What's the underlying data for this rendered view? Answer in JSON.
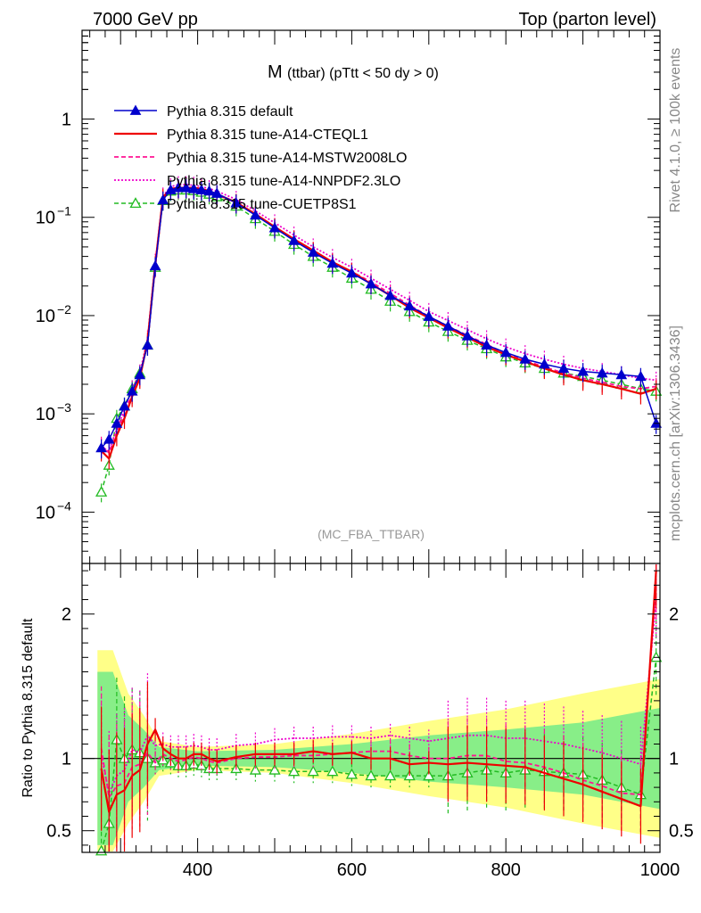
{
  "header": {
    "left": "7000 GeV pp",
    "right": "Top (parton level)",
    "title": "M",
    "subtitle": "(ttbar) (pTtt < 50 dy > 0)",
    "watermark": "(MC_FBA_TTBAR)",
    "side_top": "Rivet 4.1.0, ≥ 100k events",
    "side_bottom": "mcplots.cern.ch [arXiv:1306.3436]"
  },
  "chart_data": {
    "type": "line",
    "title": "M (ttbar) (pTtt < 50 dy > 0)",
    "xlabel": "",
    "ylabel_ratio": "Ratio to Pythia 8.315 default",
    "xlim": [
      250,
      1000
    ],
    "ylim_main": [
      3e-05,
      8
    ],
    "ylim_ratio": [
      0.35,
      2.35
    ],
    "x_ticks": [
      "400",
      "600",
      "800",
      "1000"
    ],
    "x_tick_values": [
      400,
      600,
      800,
      1000
    ],
    "y_ticks_main": [
      {
        "value": 1,
        "mant": "1",
        "exp": ""
      },
      {
        "value": 0.1,
        "mant": "10",
        "exp": "−1"
      },
      {
        "value": 0.01,
        "mant": "10",
        "exp": "−2"
      },
      {
        "value": 0.001,
        "mant": "10",
        "exp": "−3"
      },
      {
        "value": 0.0001,
        "mant": "10",
        "exp": "−4"
      }
    ],
    "y_ticks_ratio": [
      {
        "value": 0.5,
        "label": "0.5"
      },
      {
        "value": 1,
        "label": "1"
      },
      {
        "value": 2,
        "label": "2"
      }
    ],
    "band_x": [
      270,
      290,
      310,
      330,
      350,
      400,
      500,
      600,
      700,
      800,
      900,
      1000
    ],
    "band_green": [
      0.6,
      0.6,
      0.3,
      0.2,
      0.08,
      0.05,
      0.06,
      0.1,
      0.16,
      0.2,
      0.25,
      0.35
    ],
    "band_yellow": [
      0.75,
      0.75,
      0.45,
      0.3,
      0.12,
      0.08,
      0.1,
      0.17,
      0.26,
      0.34,
      0.45,
      0.55
    ],
    "x": [
      275,
      285,
      295,
      305,
      315,
      325,
      335,
      345,
      355,
      365,
      375,
      385,
      395,
      405,
      415,
      425,
      450,
      475,
      500,
      525,
      550,
      575,
      600,
      625,
      650,
      675,
      700,
      725,
      750,
      775,
      800,
      825,
      850,
      875,
      900,
      925,
      950,
      975,
      995
    ],
    "series": [
      {
        "name": "Pythia 8.315 default",
        "color": "#0000cc",
        "dash": "",
        "width": 1.5,
        "marker": "triangle-filled",
        "values": [
          0.00045,
          0.00055,
          0.0008,
          0.0012,
          0.0017,
          0.0025,
          0.005,
          0.032,
          0.15,
          0.19,
          0.2,
          0.2,
          0.195,
          0.19,
          0.185,
          0.175,
          0.14,
          0.105,
          0.078,
          0.058,
          0.044,
          0.034,
          0.027,
          0.021,
          0.016,
          0.0125,
          0.0098,
          0.0078,
          0.0062,
          0.005,
          0.0042,
          0.0036,
          0.0032,
          0.0029,
          0.0027,
          0.0026,
          0.0025,
          0.0024,
          0.0008
        ]
      },
      {
        "name": "Pythia 8.315 tune-A14-CTEQL1",
        "color": "#ee0000",
        "dash": "",
        "width": 2.2,
        "marker": "",
        "values": [
          0.00042,
          0.00035,
          0.0006,
          0.0009,
          0.0015,
          0.0023,
          0.0055,
          0.033,
          0.16,
          0.195,
          0.2,
          0.2,
          0.2,
          0.195,
          0.185,
          0.172,
          0.142,
          0.108,
          0.08,
          0.06,
          0.046,
          0.035,
          0.028,
          0.021,
          0.016,
          0.012,
          0.0095,
          0.0075,
          0.006,
          0.0048,
          0.004,
          0.0034,
          0.0029,
          0.0025,
          0.0022,
          0.002,
          0.0018,
          0.0016,
          0.0018
        ]
      },
      {
        "name": "Pythia 8.315 tune-A14-MSTW2008LO",
        "color": "#ff1493",
        "dash": "5,3",
        "width": 1.8,
        "marker": "",
        "values": [
          0.00048,
          0.0004,
          0.00065,
          0.001,
          0.0016,
          0.0024,
          0.0052,
          0.031,
          0.155,
          0.19,
          0.195,
          0.198,
          0.197,
          0.19,
          0.182,
          0.17,
          0.14,
          0.106,
          0.079,
          0.059,
          0.045,
          0.035,
          0.028,
          0.022,
          0.0168,
          0.0128,
          0.0098,
          0.0078,
          0.0063,
          0.0051,
          0.0041,
          0.0035,
          0.003,
          0.0026,
          0.0023,
          0.0021,
          0.0019,
          0.0018,
          0.0019
        ]
      },
      {
        "name": "Pythia 8.315 tune-A14-NNPDF2.3LO",
        "color": "#ee00cc",
        "dash": "2,2",
        "width": 1.8,
        "marker": "",
        "values": [
          0.00046,
          0.00042,
          0.0007,
          0.0011,
          0.0018,
          0.0026,
          0.0058,
          0.035,
          0.165,
          0.205,
          0.215,
          0.215,
          0.212,
          0.205,
          0.196,
          0.185,
          0.152,
          0.116,
          0.088,
          0.066,
          0.05,
          0.039,
          0.031,
          0.024,
          0.0185,
          0.0143,
          0.011,
          0.0089,
          0.0072,
          0.0058,
          0.0048,
          0.0041,
          0.0036,
          0.0032,
          0.0029,
          0.0027,
          0.0025,
          0.0023,
          0.0022
        ]
      },
      {
        "name": "Pythia 8.315 tune-CUETP8S1",
        "color": "#22bb22",
        "dash": "5,3",
        "width": 1.5,
        "marker": "triangle-open",
        "values": [
          0.00016,
          0.0003,
          0.0009,
          0.0012,
          0.0018,
          0.0026,
          0.005,
          0.031,
          0.148,
          0.185,
          0.19,
          0.19,
          0.187,
          0.18,
          0.172,
          0.162,
          0.13,
          0.097,
          0.072,
          0.053,
          0.04,
          0.031,
          0.024,
          0.0185,
          0.014,
          0.011,
          0.0086,
          0.0069,
          0.0056,
          0.0046,
          0.0038,
          0.0033,
          0.0029,
          0.0026,
          0.0024,
          0.0022,
          0.002,
          0.0018,
          0.0017
        ]
      }
    ],
    "ratios": [
      [
        1,
        1,
        1,
        1,
        1,
        1,
        1,
        1,
        1,
        1,
        1,
        1,
        1,
        1,
        1,
        1,
        1,
        1,
        1,
        1,
        1,
        1,
        1,
        1,
        1,
        1,
        1,
        1,
        1,
        1,
        1,
        1,
        1,
        1,
        1,
        1,
        1,
        1,
        1
      ],
      [
        0.93,
        0.63,
        0.75,
        0.78,
        0.88,
        0.92,
        1.1,
        1.2,
        1.07,
        1.03,
        1.0,
        1.0,
        1.03,
        1.03,
        1.0,
        0.98,
        1.01,
        1.03,
        1.03,
        1.03,
        1.05,
        1.03,
        1.04,
        1.0,
        1.0,
        0.96,
        0.97,
        0.96,
        0.97,
        0.96,
        0.95,
        0.94,
        0.9,
        0.86,
        0.82,
        0.77,
        0.72,
        0.67,
        2.3
      ],
      [
        1.07,
        0.73,
        0.81,
        0.83,
        0.94,
        0.96,
        1.04,
        0.97,
        1.03,
        1.0,
        0.98,
        0.99,
        1.01,
        1.0,
        0.98,
        0.97,
        1.0,
        1.01,
        1.01,
        1.02,
        1.02,
        1.03,
        1.04,
        1.05,
        1.05,
        1.02,
        1.0,
        1.0,
        1.02,
        1.02,
        0.98,
        0.97,
        0.94,
        0.9,
        0.85,
        0.81,
        0.76,
        0.75,
        2.2
      ],
      [
        1.02,
        0.76,
        0.88,
        0.92,
        1.06,
        1.04,
        1.16,
        1.09,
        1.1,
        1.08,
        1.08,
        1.08,
        1.09,
        1.08,
        1.06,
        1.06,
        1.09,
        1.1,
        1.13,
        1.14,
        1.14,
        1.15,
        1.15,
        1.14,
        1.16,
        1.14,
        1.12,
        1.14,
        1.16,
        1.16,
        1.14,
        1.14,
        1.12,
        1.1,
        1.07,
        1.04,
        1.0,
        0.96,
        2.1
      ]
    ],
    "ratio_green": [
      0.36,
      0.55,
      1.13,
      1.0,
      1.06,
      1.04,
      1.0,
      0.97,
      0.99,
      0.97,
      0.95,
      0.95,
      0.96,
      0.95,
      0.93,
      0.93,
      0.93,
      0.92,
      0.92,
      0.91,
      0.91,
      0.91,
      0.89,
      0.88,
      0.88,
      0.88,
      0.88,
      0.88,
      0.9,
      0.92,
      0.9,
      0.92,
      0.91,
      0.9,
      0.89,
      0.85,
      0.8,
      0.75,
      1.7
    ]
  }
}
